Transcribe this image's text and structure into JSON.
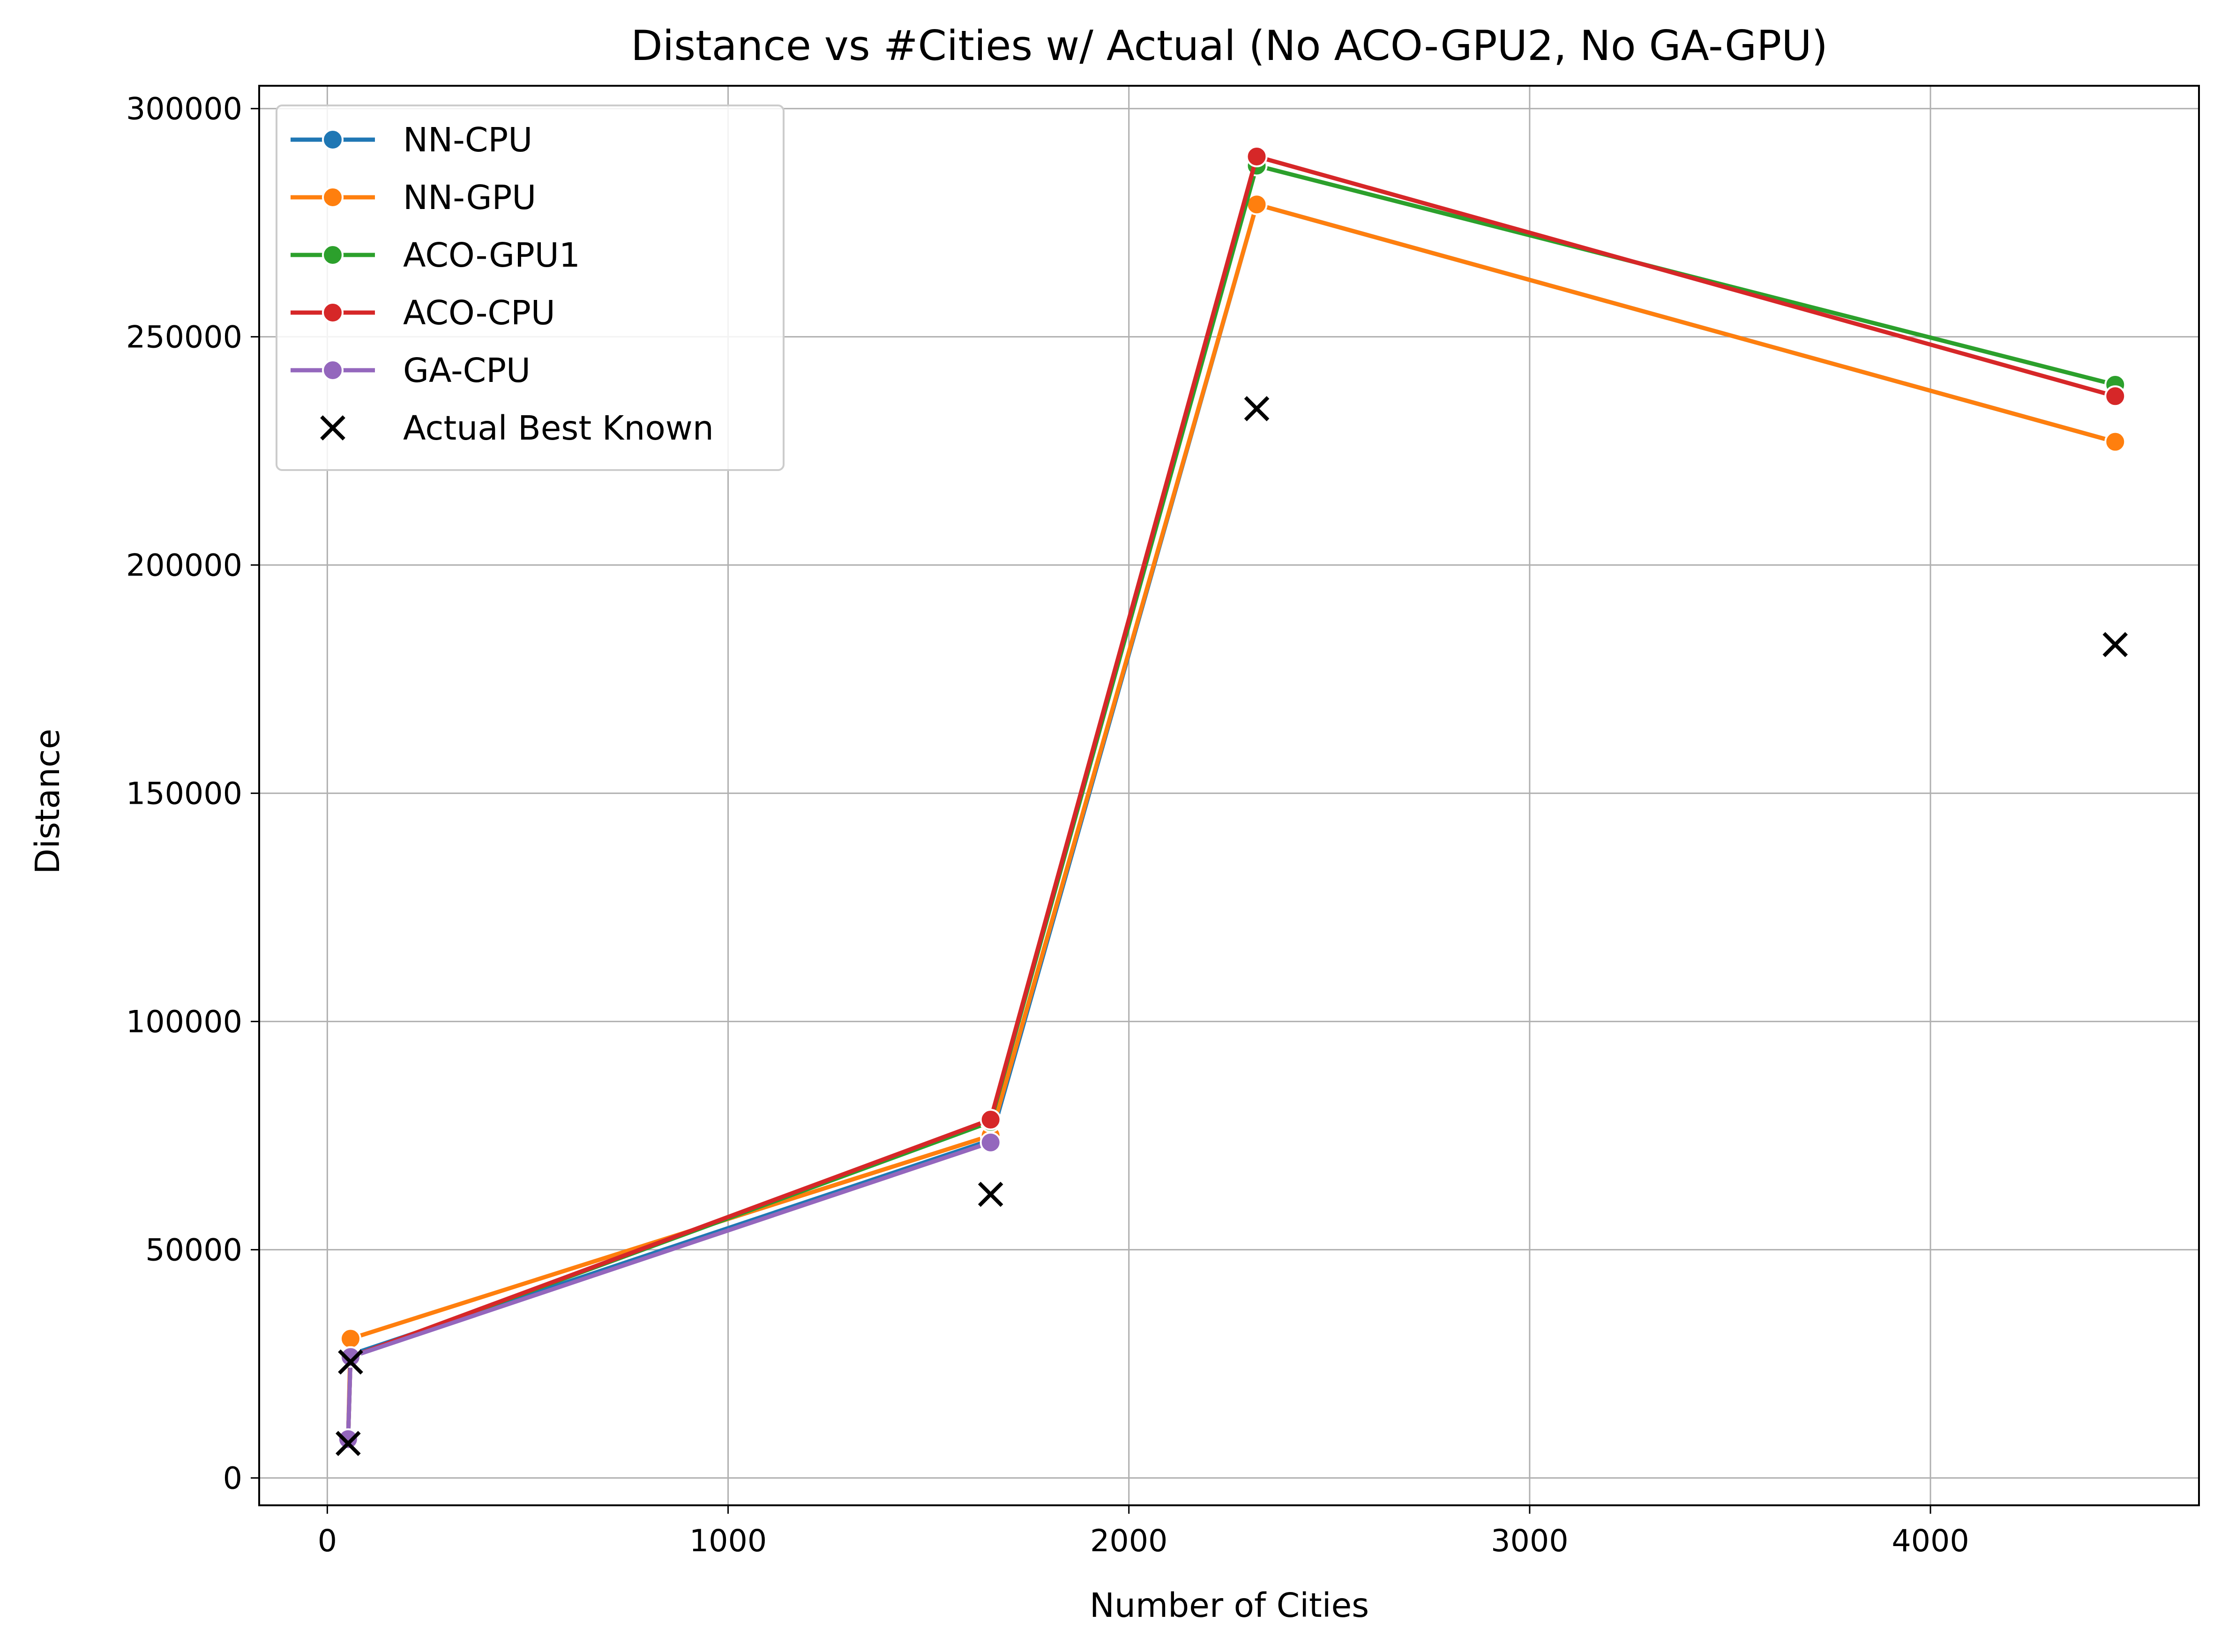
{
  "chart_data": {
    "type": "line",
    "title": "Distance vs #Cities w/ Actual (No ACO-GPU2, No GA-GPU)",
    "xlabel": "Number of Cities",
    "ylabel": "Distance",
    "xlim": [
      -170,
      4670
    ],
    "ylim": [
      -6000,
      305000
    ],
    "xticks": [
      0,
      1000,
      2000,
      3000,
      4000
    ],
    "xtick_labels": [
      "0",
      "1000",
      "2000",
      "3000",
      "4000"
    ],
    "yticks": [
      0,
      50000,
      100000,
      150000,
      200000,
      250000,
      300000
    ],
    "ytick_labels": [
      "0",
      "50000",
      "100000",
      "150000",
      "200000",
      "250000",
      "300000"
    ],
    "grid": true,
    "legend_position": "top-left",
    "series": [
      {
        "name": "NN-CPU",
        "color": "#1f77b4",
        "marker": "circle",
        "points": [
          [
            52,
            8500
          ],
          [
            58,
            27000
          ],
          [
            1655,
            74000
          ],
          [
            2319,
            279000
          ],
          [
            4461,
            227000
          ]
        ]
      },
      {
        "name": "NN-GPU",
        "color": "#ff7f0e",
        "marker": "circle",
        "points": [
          [
            52,
            8500
          ],
          [
            58,
            30500
          ],
          [
            1655,
            75000
          ],
          [
            2319,
            279000
          ],
          [
            4461,
            227000
          ]
        ]
      },
      {
        "name": "ACO-GPU1",
        "color": "#2ca02c",
        "marker": "circle",
        "points": [
          [
            52,
            8500
          ],
          [
            58,
            26500
          ],
          [
            1655,
            78000
          ],
          [
            2319,
            287500
          ],
          [
            4461,
            239500
          ]
        ]
      },
      {
        "name": "ACO-CPU",
        "color": "#d62728",
        "marker": "circle",
        "points": [
          [
            52,
            8500
          ],
          [
            58,
            26500
          ],
          [
            1655,
            78500
          ],
          [
            2319,
            289500
          ],
          [
            4461,
            237000
          ]
        ]
      },
      {
        "name": "GA-CPU",
        "color": "#9467bd",
        "marker": "circle",
        "points": [
          [
            52,
            8500
          ],
          [
            58,
            26500
          ],
          [
            1655,
            73500
          ]
        ]
      }
    ],
    "actual": {
      "name": "Actual Best Known",
      "color": "#000000",
      "marker": "x",
      "points": [
        [
          52,
          7542
        ],
        [
          58,
          25395
        ],
        [
          1655,
          62128
        ],
        [
          2319,
          234256
        ],
        [
          4461,
          182566
        ]
      ]
    }
  }
}
